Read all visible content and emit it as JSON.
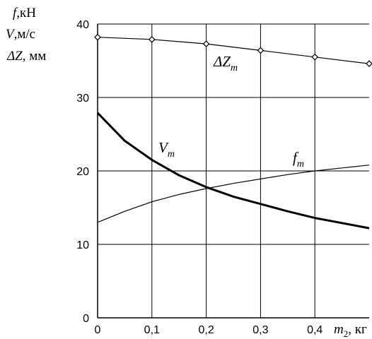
{
  "chart_data": {
    "type": "line",
    "ylabel_lines": [
      {
        "symbol": "f",
        "unit": ",кН"
      },
      {
        "symbol": "V",
        "unit": ",м/с"
      },
      {
        "symbol": "ΔZ",
        "unit": ", мм"
      }
    ],
    "xlabel": {
      "symbol": "m",
      "subscript": "2",
      "unit": ", кг"
    },
    "xlim": [
      0,
      0.5
    ],
    "ylim": [
      0,
      40
    ],
    "x_ticks": [
      {
        "value": 0,
        "label": "0"
      },
      {
        "value": 0.1,
        "label": "0,1"
      },
      {
        "value": 0.2,
        "label": "0,2"
      },
      {
        "value": 0.3,
        "label": "0,3"
      },
      {
        "value": 0.4,
        "label": "0,4"
      }
    ],
    "y_ticks": [
      {
        "value": 0,
        "label": "0"
      },
      {
        "value": 10,
        "label": "10"
      },
      {
        "value": 20,
        "label": "20"
      },
      {
        "value": 30,
        "label": "30"
      },
      {
        "value": 40,
        "label": "40"
      }
    ],
    "grid": true,
    "series": [
      {
        "name": "ΔZ",
        "subscript": "m",
        "style": "thin-with-diamond-markers",
        "x": [
          0,
          0.1,
          0.2,
          0.3,
          0.4,
          0.5
        ],
        "y": [
          38.2,
          37.9,
          37.3,
          36.4,
          35.5,
          34.6
        ]
      },
      {
        "name": "V",
        "subscript": "m",
        "style": "thick",
        "x": [
          0,
          0.05,
          0.1,
          0.15,
          0.2,
          0.25,
          0.3,
          0.35,
          0.4,
          0.45,
          0.5
        ],
        "y": [
          27.9,
          24.1,
          21.5,
          19.4,
          17.8,
          16.5,
          15.5,
          14.5,
          13.6,
          12.9,
          12.2
        ]
      },
      {
        "name": "f",
        "subscript": "m",
        "style": "thin",
        "x": [
          0,
          0.05,
          0.1,
          0.15,
          0.2,
          0.25,
          0.3,
          0.35,
          0.4,
          0.45,
          0.5
        ],
        "y": [
          13.0,
          14.5,
          15.8,
          16.8,
          17.6,
          18.3,
          18.9,
          19.5,
          20.0,
          20.4,
          20.8
        ]
      }
    ]
  },
  "colors": {
    "axis": "#000000",
    "grid": "#000000",
    "line": "#000000",
    "background": "#ffffff"
  }
}
